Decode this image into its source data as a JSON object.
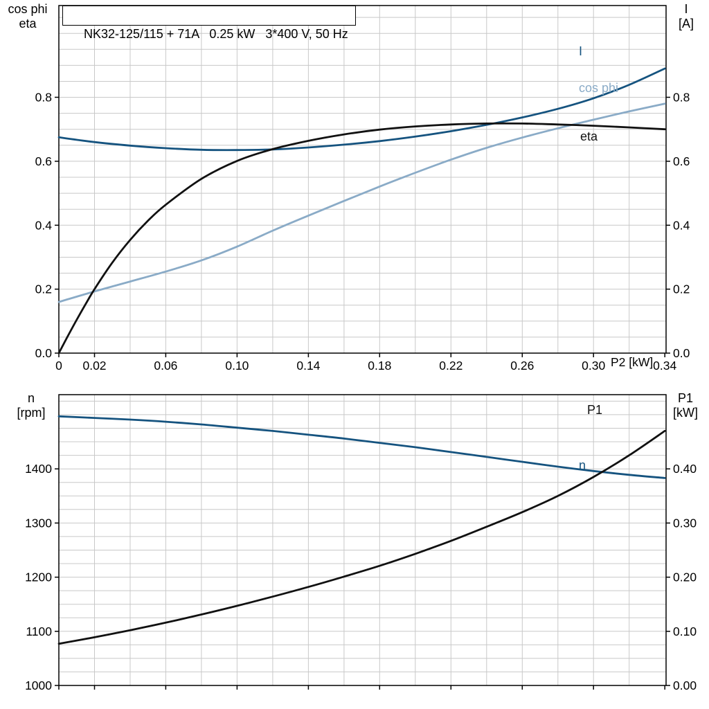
{
  "header": {
    "title": "NK32-125/115 + 71A   0.25 kW   3*400 V, 50 Hz"
  },
  "chart_data": [
    {
      "type": "line",
      "title": "NK32-125/115 + 71A   0.25 kW   3*400 V, 50 Hz",
      "xlabel": "P2 [kW]",
      "ylabel_left": [
        "cos phi",
        "eta"
      ],
      "ylabel_right": [
        "I",
        "[A]"
      ],
      "x_ticks": {
        "values": [
          0,
          0.02,
          0.06,
          0.1,
          0.14,
          0.18,
          0.22,
          0.26,
          0.3,
          0.34
        ],
        "labels": [
          "0",
          "0.02",
          "0.06",
          "0.10",
          "0.14",
          "0.18",
          "0.22",
          "0.26",
          "0.30",
          "0.34"
        ]
      },
      "y_ticks_left": {
        "values": [
          0,
          0.2,
          0.4,
          0.6,
          0.8
        ],
        "labels": [
          "0.0",
          "0.2",
          "0.4",
          "0.6",
          "0.8"
        ]
      },
      "y_ticks_right": {
        "values": [
          0,
          0.2,
          0.4,
          0.6,
          0.8
        ],
        "labels": [
          "0.0",
          "0.2",
          "0.4",
          "0.6",
          "0.8"
        ]
      },
      "layout": {
        "xlim": [
          0,
          0.3407
        ],
        "ylim": [
          0,
          1.087
        ],
        "y2lim": [
          0,
          1.087
        ],
        "xgrid": 0.02,
        "ygrid": 0.05,
        "grid": true
      },
      "series": [
        {
          "name": "I",
          "color": "#15537f",
          "axis": "right",
          "x": [
            0,
            0.02,
            0.04,
            0.06,
            0.08,
            0.1,
            0.12,
            0.14,
            0.16,
            0.18,
            0.2,
            0.22,
            0.24,
            0.26,
            0.28,
            0.3,
            0.32,
            0.34
          ],
          "values": [
            0.675,
            0.66,
            0.649,
            0.641,
            0.636,
            0.635,
            0.637,
            0.643,
            0.652,
            0.663,
            0.677,
            0.694,
            0.714,
            0.737,
            0.764,
            0.797,
            0.839,
            0.89
          ]
        },
        {
          "name": "cos phi",
          "color": "#8aabc7",
          "axis": "left",
          "x": [
            0,
            0.02,
            0.04,
            0.06,
            0.08,
            0.1,
            0.12,
            0.14,
            0.16,
            0.18,
            0.2,
            0.22,
            0.24,
            0.26,
            0.28,
            0.3,
            0.32,
            0.34
          ],
          "values": [
            0.16,
            0.193,
            0.224,
            0.255,
            0.29,
            0.333,
            0.383,
            0.43,
            0.476,
            0.521,
            0.564,
            0.605,
            0.642,
            0.674,
            0.703,
            0.73,
            0.756,
            0.78
          ]
        },
        {
          "name": "eta",
          "color": "#111111",
          "axis": "left",
          "x": [
            0,
            0.005,
            0.01,
            0.015,
            0.02,
            0.03,
            0.04,
            0.05,
            0.06,
            0.08,
            0.1,
            0.12,
            0.14,
            0.16,
            0.18,
            0.2,
            0.22,
            0.24,
            0.26,
            0.28,
            0.3,
            0.32,
            0.34
          ],
          "values": [
            0,
            0.053,
            0.104,
            0.153,
            0.2,
            0.283,
            0.354,
            0.414,
            0.464,
            0.545,
            0.601,
            0.638,
            0.664,
            0.684,
            0.699,
            0.709,
            0.715,
            0.718,
            0.718,
            0.715,
            0.711,
            0.706,
            0.7
          ]
        }
      ]
    },
    {
      "type": "line",
      "title": "",
      "xlabel": "",
      "ylabel_left": [
        "n",
        "[rpm]"
      ],
      "ylabel_right": [
        "P1",
        "[kW]"
      ],
      "x_ticks": {
        "values": [
          0,
          0.02,
          0.06,
          0.1,
          0.14,
          0.18,
          0.22,
          0.26,
          0.3,
          0.34
        ],
        "labels": [
          "",
          "",
          "",
          "",
          "",
          "",
          "",
          "",
          "",
          ""
        ]
      },
      "y_ticks_left": {
        "values": [
          1000,
          1100,
          1200,
          1300,
          1400
        ],
        "labels": [
          "1000",
          "1100",
          "1200",
          "1300",
          "1400"
        ]
      },
      "y_ticks_right": {
        "values": [
          0,
          0.1,
          0.2,
          0.3,
          0.4
        ],
        "labels": [
          "0.00",
          "0.10",
          "0.20",
          "0.30",
          "0.40"
        ]
      },
      "layout": {
        "xlim": [
          0,
          0.3407
        ],
        "ylim": [
          1000,
          1537
        ],
        "y2lim": [
          0,
          0.537
        ],
        "xgrid": 0.02,
        "ygrid": 25,
        "grid": true
      },
      "series": [
        {
          "name": "n",
          "color": "#15537f",
          "axis": "left",
          "x": [
            0,
            0.02,
            0.04,
            0.06,
            0.08,
            0.1,
            0.12,
            0.14,
            0.16,
            0.18,
            0.2,
            0.22,
            0.24,
            0.26,
            0.28,
            0.3,
            0.32,
            0.34
          ],
          "values": [
            1497,
            1494,
            1491,
            1487,
            1482,
            1476,
            1470,
            1463,
            1456,
            1448,
            1440,
            1431,
            1422,
            1413,
            1404,
            1396,
            1389,
            1383
          ]
        },
        {
          "name": "P1",
          "color": "#111111",
          "axis": "right",
          "x": [
            0,
            0.02,
            0.04,
            0.06,
            0.08,
            0.1,
            0.12,
            0.14,
            0.16,
            0.18,
            0.2,
            0.22,
            0.24,
            0.26,
            0.28,
            0.3,
            0.32,
            0.34
          ],
          "values": [
            0.077,
            0.089,
            0.102,
            0.116,
            0.131,
            0.147,
            0.164,
            0.182,
            0.201,
            0.221,
            0.243,
            0.267,
            0.293,
            0.32,
            0.35,
            0.385,
            0.425,
            0.47
          ]
        }
      ]
    }
  ]
}
